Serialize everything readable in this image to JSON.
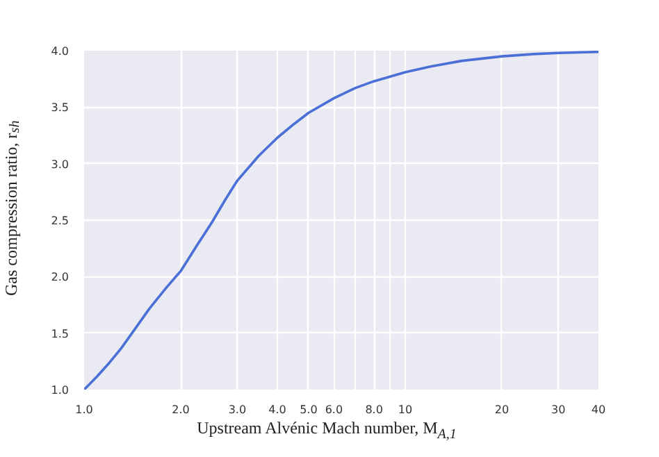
{
  "chart_data": {
    "type": "line",
    "xlabel": "Upstream Alvénic Mach number, M$_{A,1}$",
    "ylabel": "Gas compression ratio, r$_{sh}$",
    "x": [
      1.0,
      1.1,
      1.2,
      1.3,
      1.41,
      1.6,
      1.8,
      2.0,
      2.25,
      2.5,
      2.75,
      3.0,
      3.5,
      4.0,
      4.5,
      5.0,
      6.0,
      7.0,
      8.0,
      10.0,
      12.0,
      15.0,
      20.0,
      25.0,
      30.0,
      40.0
    ],
    "series": [
      {
        "color": "#4a6fd6",
        "values": [
          1.0,
          1.12,
          1.24,
          1.36,
          1.5,
          1.72,
          1.9,
          2.05,
          2.28,
          2.48,
          2.68,
          2.85,
          3.07,
          3.23,
          3.35,
          3.45,
          3.58,
          3.67,
          3.73,
          3.81,
          3.86,
          3.91,
          3.95,
          3.97,
          3.98,
          3.99
        ]
      }
    ],
    "log": "x",
    "xlim": [
      1.0,
      40
    ],
    "ylim": [
      1.0,
      4.0
    ],
    "xticks": [
      {
        "value": 1,
        "label": "1.0"
      },
      {
        "value": 2,
        "label": "2.0"
      },
      {
        "value": 3,
        "label": "3.0"
      },
      {
        "value": 4,
        "label": "4.0"
      },
      {
        "value": 5,
        "label": "5.0"
      },
      {
        "value": 6,
        "label": "6.0"
      },
      {
        "value": 7,
        "label": null
      },
      {
        "value": 8,
        "label": "8.0"
      },
      {
        "value": 9,
        "label": null
      },
      10,
      20,
      30,
      40
    ],
    "yticks": [
      {
        "value": 1,
        "label": "1.0"
      },
      1.5,
      {
        "value": 2,
        "label": "2.0"
      },
      2.5,
      {
        "value": 3,
        "label": "3.0"
      },
      3.5,
      {
        "value": 4,
        "label": "4.0"
      }
    ],
    "grid": true,
    "line_style": "solid"
  }
}
